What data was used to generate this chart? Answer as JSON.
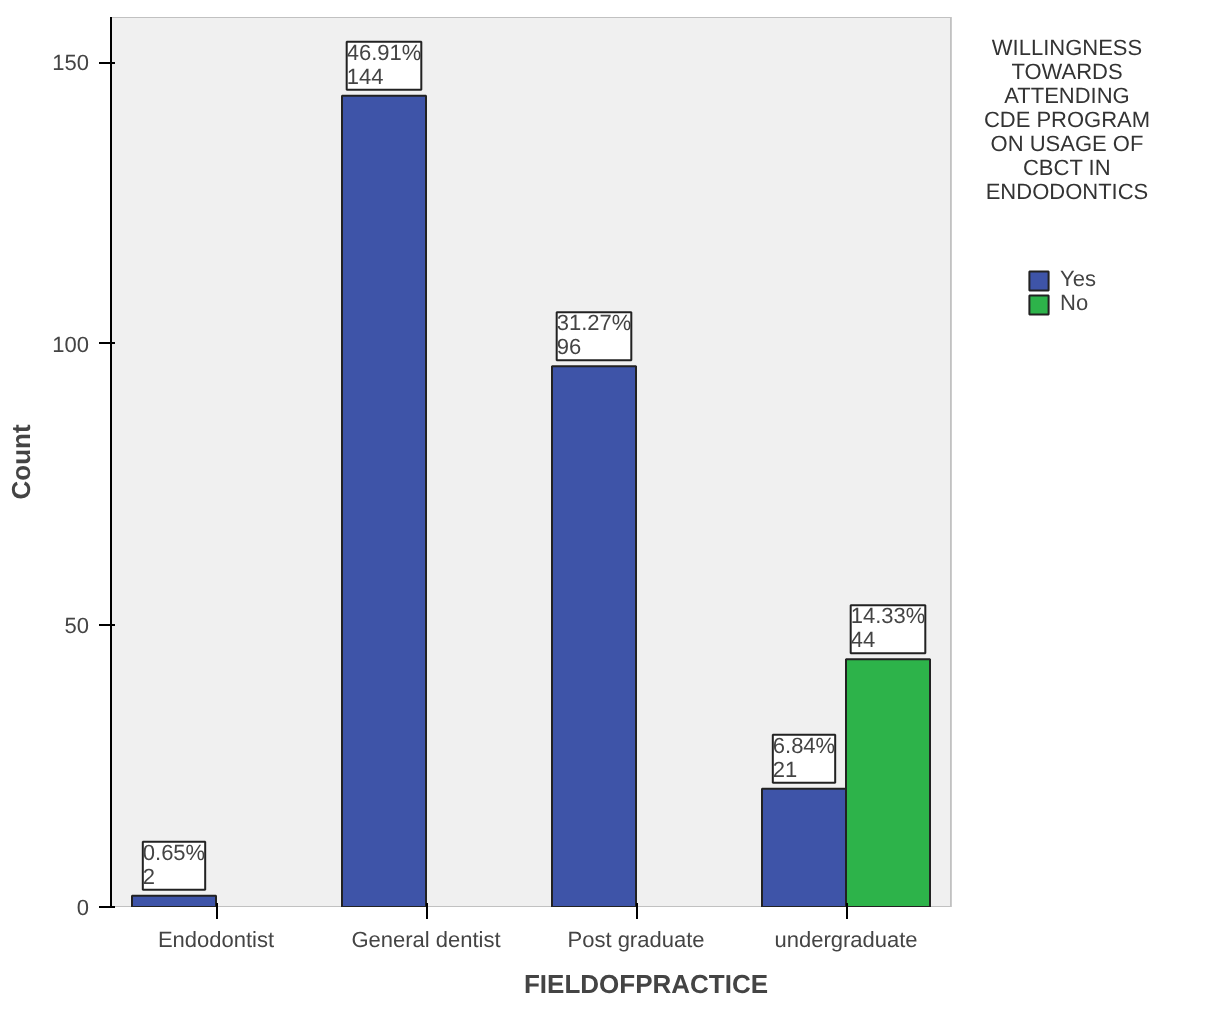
{
  "chart_data": {
    "type": "bar",
    "xlabel": "FIELDOFPRACTICE",
    "ylabel": "Count",
    "legend_title": "WILLINGNESS TOWARDS ATTENDING CDE PROGRAM ON USAGE OF CBCT IN ENDODONTICS",
    "categories": [
      "Endodontist",
      "General dentist",
      "Post graduate",
      "undergraduate"
    ],
    "series": [
      {
        "name": "Yes",
        "color": "#3e54a8",
        "values": [
          2,
          144,
          96,
          21
        ],
        "value_labels": [
          "0.65%\n2",
          "46.91%\n144",
          "31.27%\n96",
          "6.84%\n21"
        ]
      },
      {
        "name": "No",
        "color": "#2db34a",
        "values": [
          null,
          null,
          null,
          44
        ],
        "value_labels": [
          null,
          null,
          null,
          "14.33%\n44"
        ]
      }
    ],
    "ylim": [
      0,
      158
    ],
    "yticks": [
      0,
      50,
      100,
      150
    ],
    "legend": "right"
  }
}
